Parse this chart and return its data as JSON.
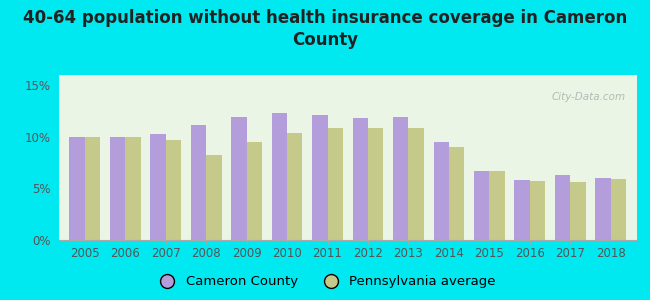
{
  "title": "40-64 population without health insurance coverage in Cameron\nCounty",
  "years": [
    2005,
    2006,
    2007,
    2008,
    2009,
    2010,
    2011,
    2012,
    2013,
    2014,
    2015,
    2016,
    2017,
    2018
  ],
  "cameron_county": [
    10.0,
    10.0,
    10.3,
    11.2,
    11.9,
    12.3,
    12.1,
    11.8,
    11.9,
    9.5,
    6.7,
    5.8,
    6.3,
    6.0
  ],
  "pa_average": [
    10.0,
    10.0,
    9.7,
    8.2,
    9.5,
    10.4,
    10.9,
    10.9,
    10.9,
    9.0,
    6.7,
    5.7,
    5.6,
    5.9
  ],
  "cameron_color": "#b39ddb",
  "pa_color": "#c5c98a",
  "background_outer": "#00e8f0",
  "background_inner": "#eaf5e5",
  "ylim": [
    0,
    16
  ],
  "yticks": [
    0,
    5,
    10,
    15
  ],
  "ytick_labels": [
    "0%",
    "5%",
    "10%",
    "15%"
  ],
  "bar_width": 0.38,
  "title_fontsize": 12,
  "legend_fontsize": 9.5,
  "tick_fontsize": 8.5,
  "watermark": "City-Data.com",
  "legend_cameron": "Cameron County",
  "legend_pa": "Pennsylvania average"
}
